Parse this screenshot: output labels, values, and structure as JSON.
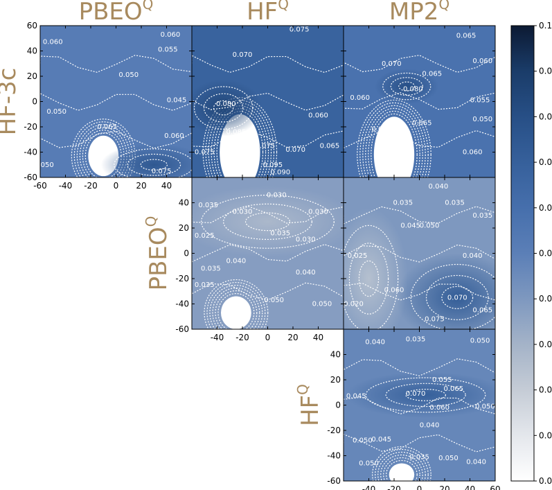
{
  "chart_data": {
    "type": "heatmap",
    "layout": "lower-triangle comparison matrix",
    "column_titles": [
      "PBEO",
      "HF",
      "MP2"
    ],
    "column_title_superscripts": [
      "Q",
      "Q",
      "Q"
    ],
    "row_titles": [
      "HF-3c",
      "PBEO",
      "HF"
    ],
    "row_title_superscripts": [
      "",
      "Q",
      "Q"
    ],
    "axis_ticks": [
      "-60",
      "-40",
      "-20",
      "0",
      "20",
      "40",
      "60"
    ],
    "xlim": [
      -60,
      60
    ],
    "ylim": [
      -60,
      60
    ],
    "colorbar": {
      "min": 0.0,
      "max": 0.1,
      "ticks": [
        "0.00",
        "0.01",
        "0.02",
        "0.03",
        "0.04",
        "0.05",
        "0.06",
        "0.07",
        "0.08",
        "0.09",
        "0.10"
      ],
      "colors": [
        "#ffffff",
        "#e4e7ec",
        "#c5ccd6",
        "#a4b3c8",
        "#7e98bf",
        "#5b7fb7",
        "#466fac",
        "#36609b",
        "#274f86",
        "#1a3c69",
        "#0c1a33"
      ]
    },
    "panels": [
      {
        "row": "HF-3c",
        "col": "PBEO",
        "x_tick_labels": [
          "-60",
          "-40",
          "-20",
          "0",
          "20",
          "40"
        ],
        "y_tick_labels": [
          "60",
          "40",
          "20",
          "0",
          "-20",
          "-40",
          "-60"
        ],
        "contour_labels": [
          {
            "text": "0.060",
            "x": -50,
            "y": 47
          },
          {
            "text": "0.060",
            "x": 43,
            "y": 53
          },
          {
            "text": "0.055",
            "x": 41,
            "y": 41
          },
          {
            "text": "0.050",
            "x": 10,
            "y": 21
          },
          {
            "text": "0.045",
            "x": 48,
            "y": 1
          },
          {
            "text": "0.050",
            "x": -47,
            "y": -8
          },
          {
            "text": "0.065",
            "x": -7,
            "y": -20
          },
          {
            "text": "0.060",
            "x": 46,
            "y": -27
          },
          {
            "text": "0.050",
            "x": -57,
            "y": -50
          },
          {
            "text": "0.075",
            "x": 36,
            "y": -55
          }
        ],
        "features": [
          {
            "kind": "hole",
            "x": -10,
            "y": -43,
            "rx": 12,
            "ry": 16
          },
          {
            "kind": "hotspot",
            "x": 30,
            "y": -50,
            "rx": 30,
            "ry": 12,
            "value": 0.075
          }
        ],
        "base_value": 0.052
      },
      {
        "row": "HF-3c",
        "col": "HF",
        "contour_labels": [
          {
            "text": "0.075",
            "x": 25,
            "y": 57
          },
          {
            "text": "0.070",
            "x": -20,
            "y": 37
          },
          {
            "text": "0.080",
            "x": -33,
            "y": -2
          },
          {
            "text": "0.060",
            "x": 40,
            "y": -11
          },
          {
            "text": "0.085",
            "x": -25,
            "y": -24
          },
          {
            "text": "0.075",
            "x": -50,
            "y": -40
          },
          {
            "text": "0.075",
            "x": -2,
            "y": -35
          },
          {
            "text": "0.070",
            "x": 22,
            "y": -38
          },
          {
            "text": "0.065",
            "x": 49,
            "y": -35
          },
          {
            "text": "0.095",
            "x": 4,
            "y": -50
          },
          {
            "text": "0.090",
            "x": 10,
            "y": -56
          }
        ],
        "features": [
          {
            "kind": "hole",
            "x": -22,
            "y": -40,
            "rx": 16,
            "ry": 30
          },
          {
            "kind": "hotspot",
            "x": -35,
            "y": -5,
            "rx": 22,
            "ry": 16,
            "value": 0.085
          }
        ],
        "base_value": 0.068
      },
      {
        "row": "HF-3c",
        "col": "MP2",
        "contour_labels": [
          {
            "text": "0.065",
            "x": 37,
            "y": 52
          },
          {
            "text": "0.070",
            "x": -22,
            "y": 30
          },
          {
            "text": "0.065",
            "x": 10,
            "y": 22
          },
          {
            "text": "0.060",
            "x": 50,
            "y": 32
          },
          {
            "text": "0.080",
            "x": -5,
            "y": 10
          },
          {
            "text": "0.060",
            "x": -47,
            "y": 3
          },
          {
            "text": "0.055",
            "x": 48,
            "y": 1
          },
          {
            "text": "0.050",
            "x": 50,
            "y": -14
          },
          {
            "text": "0.065",
            "x": 2,
            "y": -17
          },
          {
            "text": "0.055",
            "x": -30,
            "y": -22
          },
          {
            "text": "0.060",
            "x": 42,
            "y": -40
          }
        ],
        "features": [
          {
            "kind": "hole",
            "x": -20,
            "y": -42,
            "rx": 16,
            "ry": 30
          },
          {
            "kind": "hotspot",
            "x": -10,
            "y": 12,
            "rx": 18,
            "ry": 10,
            "value": 0.08
          }
        ],
        "base_value": 0.058
      },
      {
        "row": "PBEO",
        "col": "HF",
        "x_tick_labels": [
          "-40",
          "-20",
          "0",
          "20",
          "40"
        ],
        "y_tick_labels": [
          "40",
          "20",
          "0",
          "-20",
          "-40",
          "-60"
        ],
        "contour_labels": [
          {
            "text": "0.035",
            "x": -47,
            "y": 38
          },
          {
            "text": "0.030",
            "x": -20,
            "y": 33
          },
          {
            "text": "0.035",
            "x": 10,
            "y": 16
          },
          {
            "text": "0.030",
            "x": 40,
            "y": 33
          },
          {
            "text": "0.030",
            "x": 7,
            "y": 46
          },
          {
            "text": "0.025",
            "x": -50,
            "y": 14
          },
          {
            "text": "0.030",
            "x": 30,
            "y": 11
          },
          {
            "text": "0.040",
            "x": -25,
            "y": -6
          },
          {
            "text": "0.035",
            "x": -45,
            "y": -12
          },
          {
            "text": "0.040",
            "x": 30,
            "y": -15
          },
          {
            "text": "0.035",
            "x": -50,
            "y": -25
          },
          {
            "text": "0.050",
            "x": 5,
            "y": -37
          },
          {
            "text": "0.050",
            "x": 43,
            "y": -40
          }
        ],
        "features": [
          {
            "kind": "hole",
            "x": -25,
            "y": -47,
            "rx": 12,
            "ry": 13
          },
          {
            "kind": "lowspot",
            "x": 0,
            "y": 25,
            "rx": 50,
            "ry": 20,
            "value": 0.028
          }
        ],
        "base_value": 0.038
      },
      {
        "row": "PBEO",
        "col": "MP2",
        "contour_labels": [
          {
            "text": "0.040",
            "x": 15,
            "y": 53
          },
          {
            "text": "0.035",
            "x": -13,
            "y": 40
          },
          {
            "text": "0.035",
            "x": 28,
            "y": 40
          },
          {
            "text": "0.045",
            "x": -7,
            "y": 22
          },
          {
            "text": "0.050",
            "x": 8,
            "y": 22
          },
          {
            "text": "0.035",
            "x": 50,
            "y": 30
          },
          {
            "text": "0.025",
            "x": -49,
            "y": -2
          },
          {
            "text": "0.040",
            "x": 42,
            "y": -2
          },
          {
            "text": "0.060",
            "x": -20,
            "y": -29
          },
          {
            "text": "0.070",
            "x": 30,
            "y": -35
          },
          {
            "text": "0.065",
            "x": 50,
            "y": -45
          },
          {
            "text": "0.075",
            "x": 12,
            "y": -52
          },
          {
            "text": "0.020",
            "x": -52,
            "y": -40
          }
        ],
        "features": [
          {
            "kind": "hotspot",
            "x": 30,
            "y": -35,
            "rx": 35,
            "ry": 25,
            "value": 0.072
          },
          {
            "kind": "lowspot",
            "x": -40,
            "y": -20,
            "rx": 22,
            "ry": 40,
            "value": 0.025
          }
        ],
        "base_value": 0.04
      },
      {
        "row": "HF",
        "col": "MP2",
        "x_tick_labels": [
          "-40",
          "-20",
          "0",
          "20",
          "40",
          "60"
        ],
        "y_tick_labels": [
          "40",
          "20",
          "0",
          "-20",
          "-40",
          "-60"
        ],
        "contour_labels": [
          {
            "text": "0.040",
            "x": -35,
            "y": 50
          },
          {
            "text": "0.035",
            "x": -3,
            "y": 52
          },
          {
            "text": "0.050",
            "x": 48,
            "y": 51
          },
          {
            "text": "0.055",
            "x": 18,
            "y": 20
          },
          {
            "text": "0.070",
            "x": -3,
            "y": 9
          },
          {
            "text": "0.065",
            "x": 27,
            "y": 13
          },
          {
            "text": "0.045",
            "x": -50,
            "y": 7
          },
          {
            "text": "0.060",
            "x": 16,
            "y": -2
          },
          {
            "text": "0.050",
            "x": 52,
            "y": -1
          },
          {
            "text": "0.040",
            "x": 8,
            "y": -16
          },
          {
            "text": "0.050",
            "x": -45,
            "y": -28
          },
          {
            "text": "0.045",
            "x": -30,
            "y": -27
          },
          {
            "text": "0.035",
            "x": 0,
            "y": -41
          },
          {
            "text": "0.050",
            "x": 23,
            "y": -42
          },
          {
            "text": "0.040",
            "x": 45,
            "y": -45
          },
          {
            "text": "0.050",
            "x": -40,
            "y": -46
          }
        ],
        "features": [
          {
            "kind": "hole",
            "x": -14,
            "y": -55,
            "rx": 10,
            "ry": 9
          },
          {
            "kind": "hotspot",
            "x": 5,
            "y": 8,
            "rx": 45,
            "ry": 13,
            "value": 0.07
          }
        ],
        "base_value": 0.047
      }
    ]
  }
}
